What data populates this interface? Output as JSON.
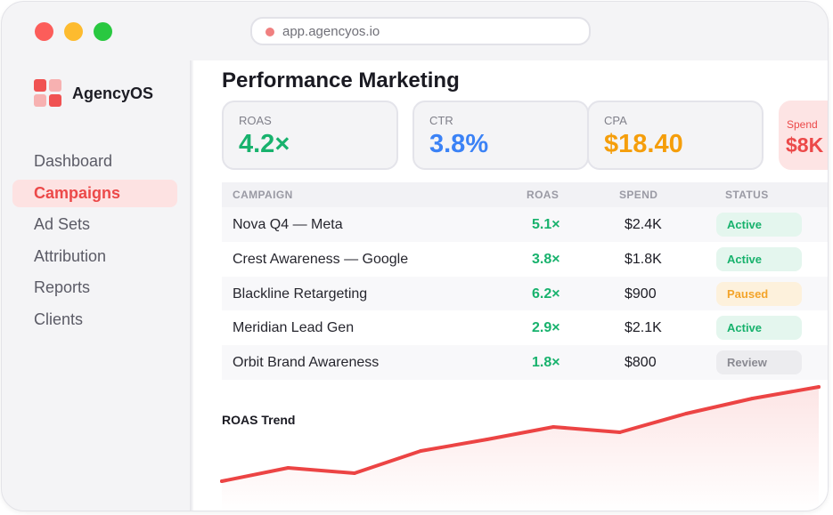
{
  "browser": {
    "url": "app.agencyos.io"
  },
  "brand": {
    "name": "AgencyOS"
  },
  "nav": {
    "items": [
      {
        "label": "Dashboard",
        "active": false
      },
      {
        "label": "Campaigns",
        "active": true
      },
      {
        "label": "Ad Sets",
        "active": false
      },
      {
        "label": "Attribution",
        "active": false
      },
      {
        "label": "Reports",
        "active": false
      },
      {
        "label": "Clients",
        "active": false
      }
    ]
  },
  "page": {
    "title": "Performance Marketing"
  },
  "kpis": [
    {
      "label": "ROAS",
      "value": "4.2×",
      "color": "#18b26d"
    },
    {
      "label": "CTR",
      "value": "3.8%",
      "color": "#3b82f6"
    },
    {
      "label": "CPA",
      "value": "$18.40",
      "color": "#f59e0b"
    },
    {
      "label": "Spend",
      "value": "$8K",
      "color": "#ec4949"
    }
  ],
  "table": {
    "headers": [
      "CAMPAIGN",
      "ROAS",
      "SPEND",
      "STATUS"
    ],
    "rows": [
      {
        "campaign": "Nova Q4 — Meta",
        "roas": "5.1×",
        "spend": "$2.4K",
        "status": "Active"
      },
      {
        "campaign": "Crest Awareness — Google",
        "roas": "3.8×",
        "spend": "$1.8K",
        "status": "Active"
      },
      {
        "campaign": "Blackline Retargeting",
        "roas": "6.2×",
        "spend": "$900",
        "status": "Paused"
      },
      {
        "campaign": "Meridian Lead Gen",
        "roas": "2.9×",
        "spend": "$2.1K",
        "status": "Active"
      },
      {
        "campaign": "Orbit Brand Awareness",
        "roas": "1.8×",
        "spend": "$800",
        "status": "Review"
      }
    ]
  },
  "trend": {
    "title": "ROAS Trend",
    "color": "#ec4444",
    "chart_data": {
      "type": "area",
      "x": [
        0,
        1,
        2,
        3,
        4,
        5,
        6,
        7,
        8,
        9
      ],
      "y": [
        0,
        15,
        9,
        34,
        47,
        61,
        55,
        76,
        93,
        106
      ],
      "ylim": [
        0,
        106
      ]
    }
  }
}
